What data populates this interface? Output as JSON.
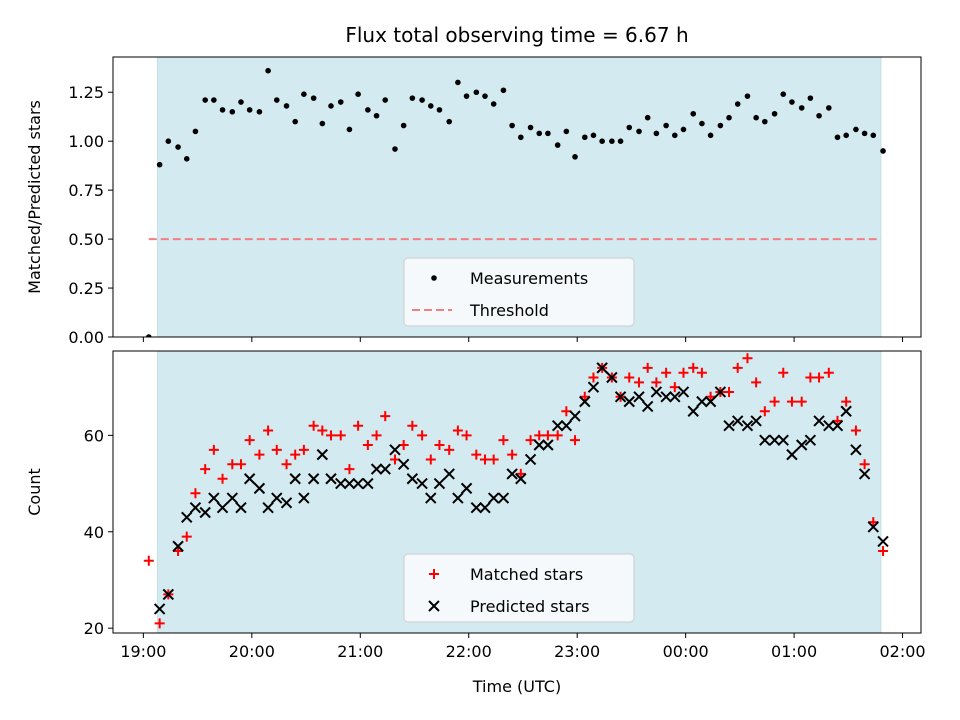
{
  "figure": {
    "title": "Flux total observing time = 6.67 h",
    "xlabel": "Time (UTC)"
  },
  "chart_data": [
    {
      "type": "scatter",
      "panel": "top",
      "title": "Flux total observing time = 6.67 h",
      "ylabel": "Matched/Predicted stars",
      "xlabel": "",
      "xlim": [
        18.72,
        26.17
      ],
      "ylim": [
        0.0,
        1.43
      ],
      "xticks": [
        {
          "value": 19,
          "label": "19:00"
        },
        {
          "value": 20,
          "label": "20:00"
        },
        {
          "value": 21,
          "label": "21:00"
        },
        {
          "value": 22,
          "label": "22:00"
        },
        {
          "value": 23,
          "label": "23:00"
        },
        {
          "value": 24,
          "label": "00:00"
        },
        {
          "value": 25,
          "label": "01:00"
        },
        {
          "value": 26,
          "label": "02:00"
        }
      ],
      "yticks": [
        {
          "value": 0.0,
          "label": "0.00"
        },
        {
          "value": 0.25,
          "label": "0.25"
        },
        {
          "value": 0.5,
          "label": "0.50"
        },
        {
          "value": 0.75,
          "label": "0.75"
        },
        {
          "value": 1.0,
          "label": "1.00"
        },
        {
          "value": 1.25,
          "label": "1.25"
        }
      ],
      "shaded_region": {
        "x_start": 19.13,
        "x_end": 25.8,
        "color": "#d3eaf0"
      },
      "threshold": {
        "name": "Threshold",
        "y": 0.5,
        "x_start": 19.05,
        "x_end": 25.8,
        "color": "#f27f82"
      },
      "legend": {
        "placement": "lower-center",
        "entries": [
          "Measurements",
          "Threshold"
        ]
      },
      "series": [
        {
          "name": "Measurements",
          "marker": "dot",
          "color": "#000000",
          "x": [
            19.05,
            19.15,
            19.23,
            19.32,
            19.4,
            19.48,
            19.57,
            19.65,
            19.73,
            19.82,
            19.9,
            19.98,
            20.07,
            20.15,
            20.23,
            20.32,
            20.4,
            20.48,
            20.57,
            20.65,
            20.73,
            20.82,
            20.9,
            20.98,
            21.07,
            21.15,
            21.23,
            21.32,
            21.4,
            21.48,
            21.57,
            21.65,
            21.73,
            21.82,
            21.9,
            21.98,
            22.07,
            22.15,
            22.23,
            22.32,
            22.4,
            22.48,
            22.57,
            22.65,
            22.73,
            22.82,
            22.9,
            22.98,
            23.07,
            23.15,
            23.23,
            23.32,
            23.4,
            23.48,
            23.57,
            23.65,
            23.73,
            23.82,
            23.9,
            23.98,
            24.07,
            24.15,
            24.23,
            24.32,
            24.4,
            24.48,
            24.57,
            24.65,
            24.73,
            24.82,
            24.9,
            24.98,
            25.07,
            25.15,
            25.23,
            25.32,
            25.4,
            25.48,
            25.57,
            25.65,
            25.73,
            25.82
          ],
          "y": [
            0.0,
            0.88,
            1.0,
            0.97,
            0.91,
            1.05,
            1.21,
            1.21,
            1.16,
            1.15,
            1.2,
            1.16,
            1.15,
            1.36,
            1.21,
            1.18,
            1.1,
            1.24,
            1.22,
            1.09,
            1.18,
            1.2,
            1.06,
            1.24,
            1.16,
            1.13,
            1.21,
            0.96,
            1.08,
            1.22,
            1.21,
            1.18,
            1.16,
            1.1,
            1.3,
            1.23,
            1.25,
            1.23,
            1.19,
            1.26,
            1.08,
            1.02,
            1.07,
            1.04,
            1.04,
            0.98,
            1.05,
            0.92,
            1.02,
            1.03,
            1.0,
            1.0,
            1.0,
            1.07,
            1.05,
            1.12,
            1.04,
            1.08,
            1.03,
            1.06,
            1.14,
            1.09,
            1.03,
            1.08,
            1.12,
            1.19,
            1.23,
            1.12,
            1.1,
            1.14,
            1.24,
            1.2,
            1.17,
            1.22,
            1.13,
            1.17,
            1.02,
            1.03,
            1.06,
            1.04,
            1.03,
            0.95
          ]
        }
      ]
    },
    {
      "type": "scatter",
      "panel": "bottom",
      "ylabel": "Count",
      "xlabel": "Time (UTC)",
      "xlim": [
        18.72,
        26.17
      ],
      "ylim": [
        19.0,
        77.5
      ],
      "xticks": [
        {
          "value": 19,
          "label": "19:00"
        },
        {
          "value": 20,
          "label": "20:00"
        },
        {
          "value": 21,
          "label": "21:00"
        },
        {
          "value": 22,
          "label": "22:00"
        },
        {
          "value": 23,
          "label": "23:00"
        },
        {
          "value": 24,
          "label": "00:00"
        },
        {
          "value": 25,
          "label": "01:00"
        },
        {
          "value": 26,
          "label": "02:00"
        }
      ],
      "yticks": [
        {
          "value": 20,
          "label": "20"
        },
        {
          "value": 40,
          "label": "40"
        },
        {
          "value": 60,
          "label": "60"
        }
      ],
      "shaded_region": {
        "x_start": 19.13,
        "x_end": 25.8,
        "color": "#d3eaf0"
      },
      "legend": {
        "placement": "lower-center",
        "entries": [
          "Matched stars",
          "Predicted stars"
        ]
      },
      "series": [
        {
          "name": "Matched stars",
          "marker": "plus",
          "color": "#ff0000",
          "x": [
            19.05,
            19.15,
            19.23,
            19.32,
            19.4,
            19.48,
            19.57,
            19.65,
            19.73,
            19.82,
            19.9,
            19.98,
            20.07,
            20.15,
            20.23,
            20.32,
            20.4,
            20.48,
            20.57,
            20.65,
            20.73,
            20.82,
            20.9,
            20.98,
            21.07,
            21.15,
            21.23,
            21.32,
            21.4,
            21.48,
            21.57,
            21.65,
            21.73,
            21.82,
            21.9,
            21.98,
            22.07,
            22.15,
            22.23,
            22.32,
            22.4,
            22.48,
            22.57,
            22.65,
            22.73,
            22.82,
            22.9,
            22.98,
            23.07,
            23.15,
            23.23,
            23.32,
            23.4,
            23.48,
            23.57,
            23.65,
            23.73,
            23.82,
            23.9,
            23.98,
            24.07,
            24.15,
            24.23,
            24.32,
            24.4,
            24.48,
            24.57,
            24.65,
            24.73,
            24.82,
            24.9,
            24.98,
            25.07,
            25.15,
            25.23,
            25.32,
            25.4,
            25.48,
            25.57,
            25.65,
            25.73,
            25.82
          ],
          "y": [
            34,
            21,
            27,
            36,
            39,
            48,
            53,
            57,
            51,
            54,
            54,
            59,
            56,
            61,
            57,
            54,
            56,
            57,
            62,
            61,
            60,
            60,
            53,
            62,
            58,
            60,
            64,
            55,
            58,
            62,
            60,
            55,
            58,
            57,
            61,
            60,
            56,
            55,
            55,
            59,
            56,
            52,
            59,
            60,
            60,
            60,
            65,
            59,
            68,
            72,
            74,
            72,
            68,
            72,
            71,
            74,
            71,
            73,
            70,
            73,
            74,
            73,
            68,
            69,
            69,
            74,
            76,
            71,
            65,
            67,
            73,
            67,
            67,
            72,
            72,
            73,
            63,
            67,
            61,
            54,
            42,
            36
          ]
        },
        {
          "name": "Predicted stars",
          "marker": "x",
          "color": "#000000",
          "x": [
            19.15,
            19.23,
            19.32,
            19.4,
            19.48,
            19.57,
            19.65,
            19.73,
            19.82,
            19.9,
            19.98,
            20.07,
            20.15,
            20.23,
            20.32,
            20.4,
            20.48,
            20.57,
            20.65,
            20.73,
            20.82,
            20.9,
            20.98,
            21.07,
            21.15,
            21.23,
            21.32,
            21.4,
            21.48,
            21.57,
            21.65,
            21.73,
            21.82,
            21.9,
            21.98,
            22.07,
            22.15,
            22.23,
            22.32,
            22.4,
            22.48,
            22.57,
            22.65,
            22.73,
            22.82,
            22.9,
            22.98,
            23.07,
            23.15,
            23.23,
            23.32,
            23.4,
            23.48,
            23.57,
            23.65,
            23.73,
            23.82,
            23.9,
            23.98,
            24.07,
            24.15,
            24.23,
            24.32,
            24.4,
            24.48,
            24.57,
            24.65,
            24.73,
            24.82,
            24.9,
            24.98,
            25.07,
            25.15,
            25.23,
            25.32,
            25.4,
            25.48,
            25.57,
            25.65,
            25.73,
            25.82
          ],
          "y": [
            24,
            27,
            37,
            43,
            45,
            44,
            47,
            45,
            47,
            45,
            51,
            49,
            45,
            47,
            46,
            51,
            47,
            51,
            56,
            51,
            50,
            50,
            50,
            50,
            53,
            53,
            57,
            54,
            51,
            50,
            47,
            50,
            52,
            47,
            49,
            45,
            45,
            47,
            47,
            52,
            51,
            55,
            58,
            58,
            62,
            62,
            64,
            67,
            70,
            74,
            72,
            68,
            67,
            68,
            66,
            69,
            68,
            68,
            69,
            65,
            67,
            67,
            69,
            62,
            63,
            62,
            63,
            59,
            59,
            59,
            56,
            58,
            59,
            63,
            62,
            62,
            65,
            57,
            52,
            41,
            38
          ]
        }
      ]
    }
  ]
}
